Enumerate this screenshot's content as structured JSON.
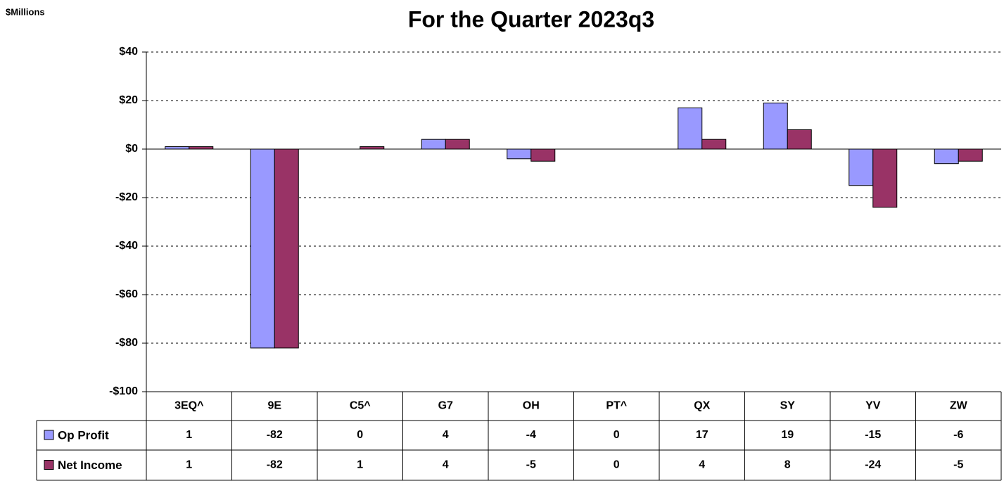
{
  "chart_data": {
    "type": "bar",
    "title": "For the Quarter 2023q3",
    "y_label": "$Millions",
    "categories": [
      "3EQ^",
      "9E",
      "C5^",
      "G7",
      "OH",
      "PT^",
      "QX",
      "SY",
      "YV",
      "ZW"
    ],
    "series": [
      {
        "name": "Op Profit",
        "color": "#9999ff",
        "values": [
          1,
          -82,
          0,
          4,
          -4,
          0,
          17,
          19,
          -15,
          -6
        ]
      },
      {
        "name": "Net Income",
        "color": "#993366",
        "values": [
          1,
          -82,
          1,
          4,
          -5,
          0,
          4,
          8,
          -24,
          -5
        ]
      }
    ],
    "ylim": [
      -100,
      40
    ],
    "yticks": [
      {
        "value": -100,
        "label": "-$100"
      },
      {
        "value": -80,
        "label": "-$80"
      },
      {
        "value": -60,
        "label": "-$60"
      },
      {
        "value": -40,
        "label": "-$40"
      },
      {
        "value": -20,
        "label": "-$20"
      },
      {
        "value": 0,
        "label": "$0"
      },
      {
        "value": 20,
        "label": "$20"
      },
      {
        "value": 40,
        "label": "$40"
      }
    ],
    "grid": true,
    "data_table": true
  }
}
